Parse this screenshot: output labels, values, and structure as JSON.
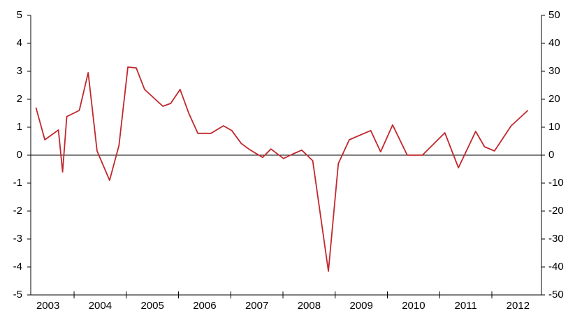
{
  "chart_data": {
    "type": "line",
    "x": [
      2003.27,
      2003.44,
      2003.7,
      2003.78,
      2003.86,
      2004.1,
      2004.27,
      2004.44,
      2004.68,
      2004.86,
      2005.03,
      2005.19,
      2005.35,
      2005.7,
      2005.85,
      2006.03,
      2006.2,
      2006.37,
      2006.62,
      2006.86,
      2007.02,
      2007.2,
      2007.36,
      2007.61,
      2007.77,
      2008.01,
      2008.2,
      2008.36,
      2008.57,
      2008.87,
      2009.06,
      2009.27,
      2009.68,
      2009.87,
      2010.1,
      2010.38,
      2010.67,
      2011.1,
      2011.36,
      2011.69,
      2011.86,
      2012.05,
      2012.37,
      2012.69
    ],
    "series": [
      {
        "color": "#c0282d",
        "values": [
          1.7,
          0.55,
          0.9,
          -0.6,
          1.38,
          1.6,
          2.95,
          0.15,
          -0.9,
          0.35,
          3.15,
          3.12,
          2.35,
          1.75,
          1.85,
          2.35,
          1.48,
          0.78,
          0.78,
          1.05,
          0.88,
          0.42,
          0.2,
          -0.08,
          0.22,
          -0.12,
          0.05,
          0.18,
          -0.2,
          -4.15,
          -0.3,
          0.55,
          0.88,
          0.12,
          1.08,
          0,
          0,
          0.8,
          -0.45,
          0.85,
          0.3,
          0.15,
          1.05,
          1.6
        ]
      }
    ],
    "xlim": [
      2003.17,
      2012.95
    ],
    "xticks": [
      2003,
      2004,
      2005,
      2006,
      2007,
      2008,
      2009,
      2010,
      2011,
      2012
    ],
    "ylim": [
      -5,
      5
    ],
    "yticks": [
      -5,
      -4,
      -3,
      -2,
      -1,
      0,
      1,
      2,
      3,
      4,
      5
    ],
    "y2lim": [
      -50,
      50
    ],
    "y2ticks": [
      -50,
      -40,
      -30,
      -20,
      -10,
      0,
      10,
      20,
      30,
      40,
      50
    ]
  }
}
